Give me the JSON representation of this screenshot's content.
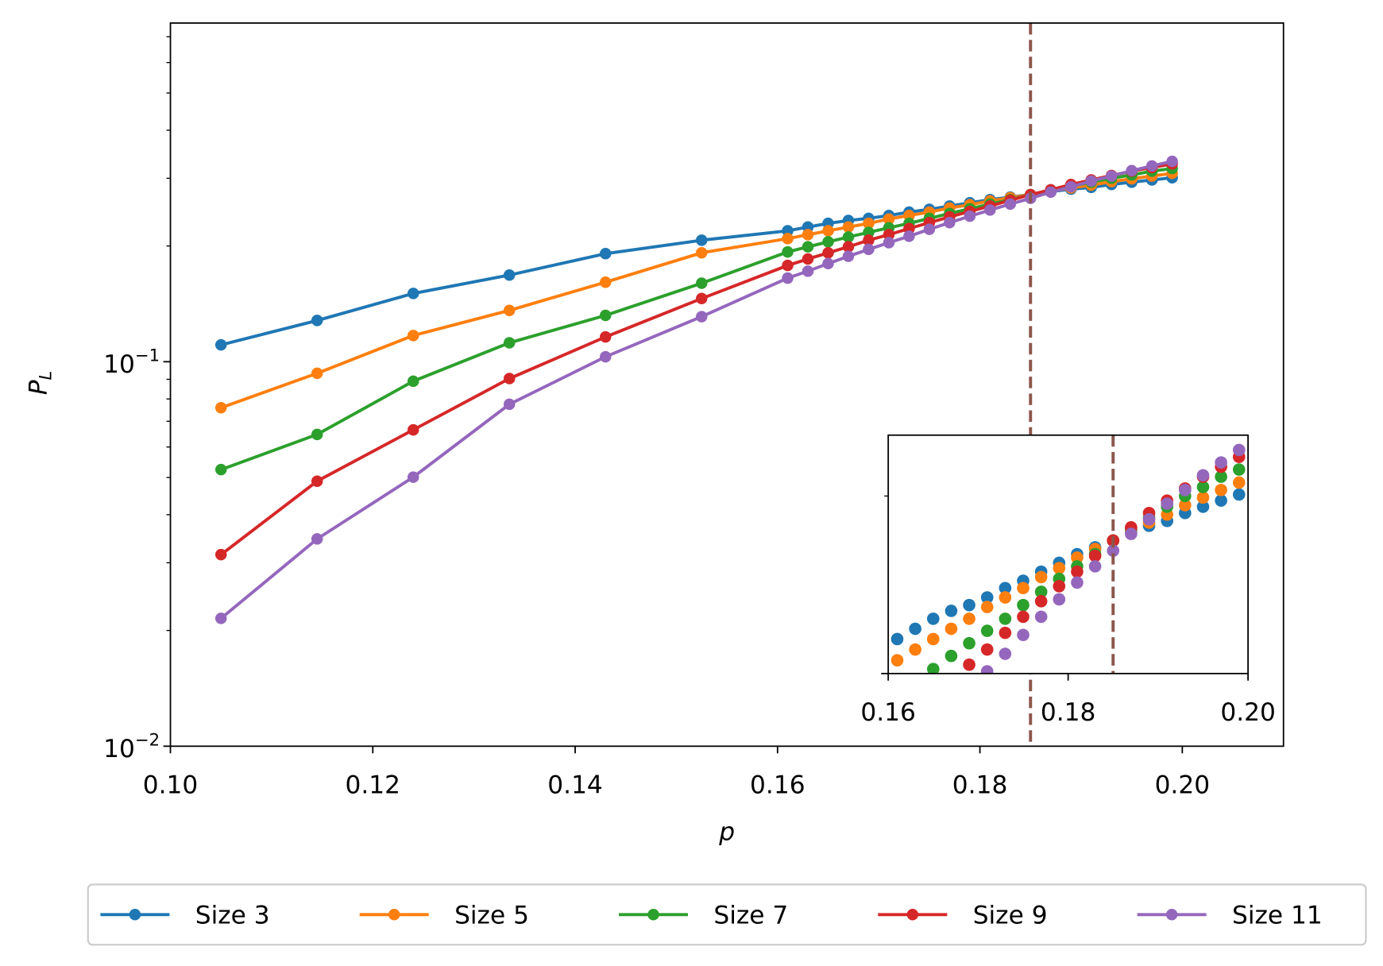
{
  "chart_data": {
    "type": "line",
    "xlabel": "p",
    "ylabel": "P_L",
    "x": [
      0.105,
      0.1145,
      0.124,
      0.1335,
      0.143,
      0.1525,
      0.161,
      0.163,
      0.165,
      0.167,
      0.169,
      0.171,
      0.173,
      0.175,
      0.177,
      0.179,
      0.181,
      0.183,
      0.185,
      0.187,
      0.189,
      0.191,
      0.193,
      0.195,
      0.197,
      0.199
    ],
    "series": [
      {
        "name": "Size 3",
        "color": "#1f77b4",
        "values": [
          0.1106,
          0.128,
          0.1505,
          0.168,
          0.191,
          0.207,
          0.219,
          0.224,
          0.229,
          0.233,
          0.236,
          0.24,
          0.245,
          0.249,
          0.254,
          0.259,
          0.264,
          0.268,
          0.272,
          0.277,
          0.281,
          0.284,
          0.289,
          0.293,
          0.297,
          0.301
        ]
      },
      {
        "name": "Size 5",
        "color": "#ff7f0e",
        "values": [
          0.0759,
          0.0933,
          0.117,
          0.136,
          0.161,
          0.192,
          0.209,
          0.214,
          0.219,
          0.224,
          0.229,
          0.235,
          0.24,
          0.245,
          0.251,
          0.256,
          0.262,
          0.267,
          0.272,
          0.278,
          0.283,
          0.288,
          0.294,
          0.299,
          0.304,
          0.309
        ]
      },
      {
        "name": "Size 7",
        "color": "#2ca02c",
        "values": [
          0.0524,
          0.0647,
          0.089,
          0.112,
          0.132,
          0.16,
          0.193,
          0.199,
          0.205,
          0.211,
          0.217,
          0.223,
          0.229,
          0.236,
          0.243,
          0.25,
          0.257,
          0.264,
          0.272,
          0.279,
          0.286,
          0.293,
          0.3,
          0.306,
          0.313,
          0.318
        ]
      },
      {
        "name": "Size 9",
        "color": "#d62728",
        "values": [
          0.0315,
          0.0489,
          0.0665,
          0.0904,
          0.116,
          0.146,
          0.178,
          0.185,
          0.192,
          0.199,
          0.207,
          0.214,
          0.222,
          0.23,
          0.238,
          0.246,
          0.254,
          0.263,
          0.272,
          0.28,
          0.289,
          0.297,
          0.305,
          0.313,
          0.32,
          0.327
        ]
      },
      {
        "name": "Size 11",
        "color": "#9467bd",
        "values": [
          0.0215,
          0.0346,
          0.0501,
          0.0775,
          0.103,
          0.131,
          0.165,
          0.172,
          0.18,
          0.188,
          0.196,
          0.204,
          0.212,
          0.221,
          0.23,
          0.239,
          0.248,
          0.257,
          0.266,
          0.276,
          0.285,
          0.295,
          0.304,
          0.314,
          0.323,
          0.332
        ]
      }
    ],
    "xlim": [
      0.1,
      0.21
    ],
    "xticks": [
      {
        "value": 0.1,
        "label": "0.10"
      },
      0.12,
      0.14,
      0.16,
      0.18,
      {
        "value": 0.2,
        "label": "0.20"
      }
    ],
    "ylim": [
      0.01,
      0.76
    ],
    "log_y": true,
    "yticks": [
      {
        "value": 0.01,
        "label": "10^−2"
      },
      {
        "value": 0.1,
        "label": "10^−1"
      }
    ],
    "yticks_minor": [
      0.02,
      0.03,
      0.04,
      0.05,
      0.06,
      0.07,
      0.08,
      0.09,
      0.2,
      0.3,
      0.4,
      0.5,
      0.6,
      0.7
    ],
    "vline": 0.185,
    "vline_color": "#8c564b",
    "legend": "lower center",
    "inset": {
      "type": "scatter",
      "xlim": [
        0.16,
        0.2
      ],
      "ylim": [
        0.203,
        0.343
      ],
      "log_y": true,
      "xticks": [
        0.16,
        0.18,
        {
          "value": 0.2,
          "label": "0.20"
        }
      ],
      "yticks_minor": [
        0.3
      ],
      "vline": 0.185
    }
  }
}
